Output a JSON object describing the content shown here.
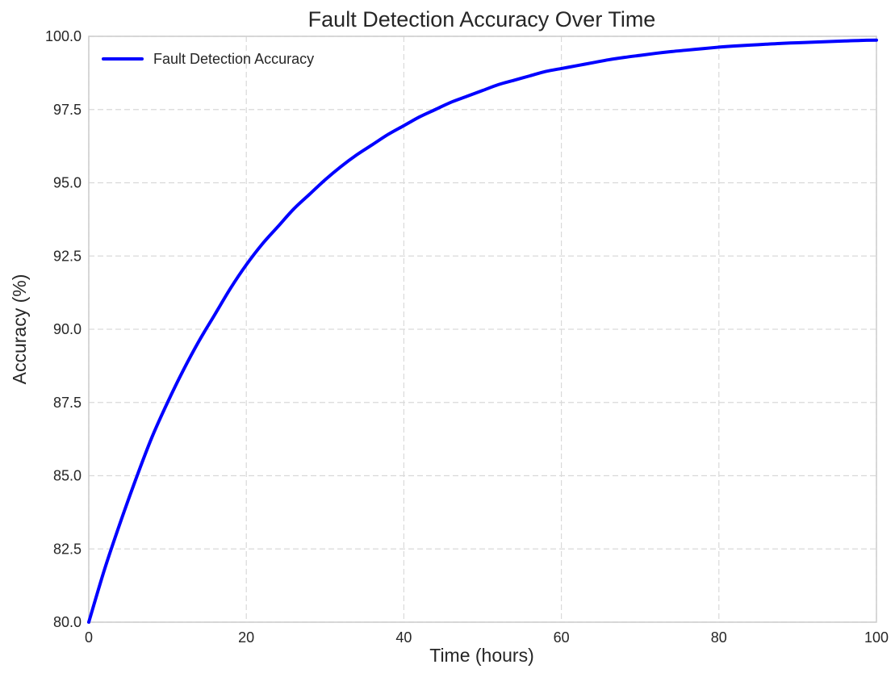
{
  "chart_data": {
    "type": "line",
    "title": "Fault Detection Accuracy Over Time",
    "xlabel": "Time (hours)",
    "ylabel": "Accuracy (%)",
    "xlim": [
      0,
      100
    ],
    "ylim": [
      80,
      100
    ],
    "xticks": [
      0,
      20,
      40,
      60,
      80,
      100
    ],
    "xtick_labels": [
      "0",
      "20",
      "40",
      "60",
      "80",
      "100"
    ],
    "yticks": [
      80,
      82.5,
      85,
      87.5,
      90,
      92.5,
      95,
      97.5,
      100
    ],
    "ytick_labels": [
      "80.0",
      "82.5",
      "85.0",
      "87.5",
      "90.0",
      "92.5",
      "95.0",
      "97.5",
      "100.0"
    ],
    "grid": true,
    "legend_position": "top-left",
    "series": [
      {
        "name": "Fault Detection Accuracy",
        "color": "#0000ff",
        "x": [
          0,
          2,
          4,
          6,
          8,
          10,
          12,
          14,
          16,
          18,
          20,
          22,
          24,
          26,
          28,
          30,
          32,
          34,
          36,
          38,
          40,
          42,
          44,
          46,
          48,
          50,
          52,
          54,
          56,
          58,
          60,
          62,
          64,
          66,
          68,
          70,
          72,
          74,
          76,
          78,
          80,
          82,
          84,
          86,
          88,
          90,
          92,
          94,
          96,
          98,
          100
        ],
        "y": [
          80.0,
          81.8,
          83.4,
          84.9,
          86.3,
          87.5,
          88.6,
          89.6,
          90.5,
          91.4,
          92.2,
          92.9,
          93.5,
          94.1,
          94.6,
          95.1,
          95.55,
          95.95,
          96.3,
          96.65,
          96.95,
          97.25,
          97.5,
          97.75,
          97.95,
          98.15,
          98.35,
          98.5,
          98.65,
          98.8,
          98.9,
          99.0,
          99.1,
          99.2,
          99.28,
          99.35,
          99.42,
          99.48,
          99.53,
          99.58,
          99.63,
          99.67,
          99.7,
          99.73,
          99.76,
          99.78,
          99.8,
          99.82,
          99.84,
          99.86,
          99.87
        ]
      }
    ]
  }
}
